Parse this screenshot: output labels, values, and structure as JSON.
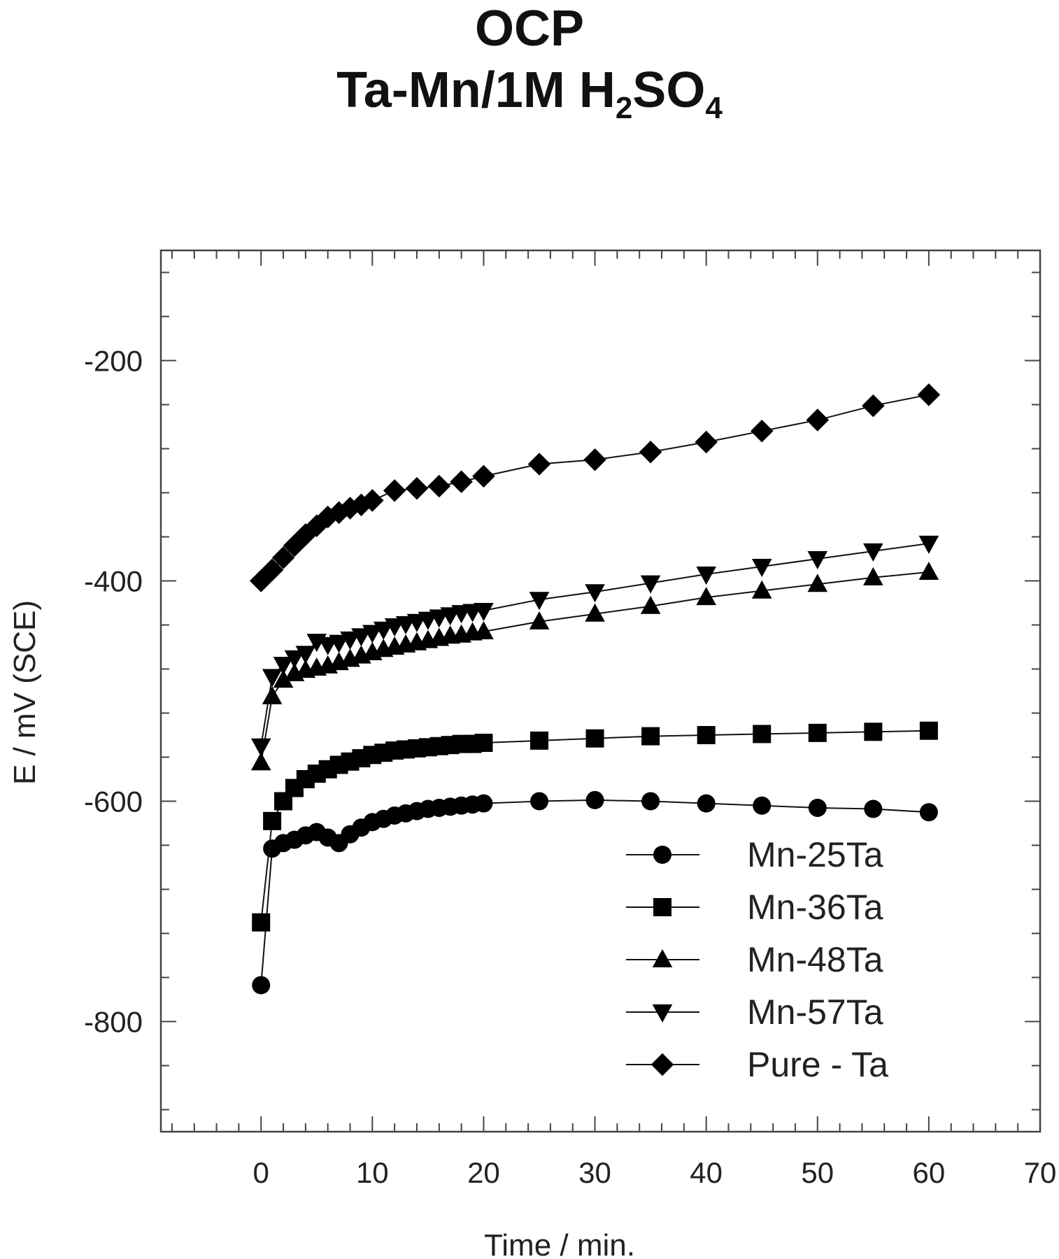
{
  "chart_data": {
    "type": "line",
    "title_line1": "OCP",
    "title_line2_main": "Ta-Mn/1M H",
    "title_line2_sub1": "2",
    "title_line2_mid": "SO",
    "title_line2_sub2": "4",
    "xlabel": "Time / min.",
    "ylabel": "E / mV (SCE)",
    "xlim": [
      -9,
      70
    ],
    "ylim": [
      -900,
      -100
    ],
    "x_ticks": [
      0,
      10,
      20,
      30,
      40,
      50,
      60,
      70
    ],
    "y_ticks": [
      -200,
      -400,
      -600,
      -800
    ],
    "legend_position": "bottom-right",
    "grid": false,
    "series": [
      {
        "name": "Mn-25Ta",
        "marker": "circle",
        "points": [
          [
            0,
            -767
          ],
          [
            1,
            -643
          ],
          [
            2,
            -638
          ],
          [
            3,
            -635
          ],
          [
            4,
            -631
          ],
          [
            5,
            -628
          ],
          [
            6,
            -633
          ],
          [
            7,
            -638
          ],
          [
            8,
            -630
          ],
          [
            9,
            -624
          ],
          [
            10,
            -619
          ],
          [
            11,
            -616
          ],
          [
            12,
            -613
          ],
          [
            13,
            -611
          ],
          [
            14,
            -609
          ],
          [
            15,
            -607
          ],
          [
            16,
            -606
          ],
          [
            17,
            -605
          ],
          [
            18,
            -604
          ],
          [
            19,
            -603
          ],
          [
            20,
            -602
          ],
          [
            25,
            -600
          ],
          [
            30,
            -599
          ],
          [
            35,
            -600
          ],
          [
            40,
            -602
          ],
          [
            45,
            -604
          ],
          [
            50,
            -606
          ],
          [
            55,
            -607
          ],
          [
            60,
            -610
          ]
        ]
      },
      {
        "name": "Mn-36Ta",
        "marker": "square",
        "points": [
          [
            0,
            -710
          ],
          [
            1,
            -618
          ],
          [
            2,
            -600
          ],
          [
            3,
            -588
          ],
          [
            4,
            -580
          ],
          [
            5,
            -575
          ],
          [
            6,
            -571
          ],
          [
            7,
            -567
          ],
          [
            8,
            -564
          ],
          [
            9,
            -561
          ],
          [
            10,
            -558
          ],
          [
            11,
            -556
          ],
          [
            12,
            -554
          ],
          [
            13,
            -553
          ],
          [
            14,
            -552
          ],
          [
            15,
            -551
          ],
          [
            16,
            -550
          ],
          [
            17,
            -549
          ],
          [
            18,
            -548
          ],
          [
            19,
            -548
          ],
          [
            20,
            -547
          ],
          [
            25,
            -545
          ],
          [
            30,
            -543
          ],
          [
            35,
            -541
          ],
          [
            40,
            -540
          ],
          [
            45,
            -539
          ],
          [
            50,
            -538
          ],
          [
            55,
            -537
          ],
          [
            60,
            -536
          ]
        ]
      },
      {
        "name": "Mn-48Ta",
        "marker": "triangle-up",
        "points": [
          [
            0,
            -565
          ],
          [
            1,
            -505
          ],
          [
            2,
            -490
          ],
          [
            3,
            -484
          ],
          [
            4,
            -481
          ],
          [
            5,
            -479
          ],
          [
            6,
            -477
          ],
          [
            7,
            -474
          ],
          [
            8,
            -471
          ],
          [
            9,
            -468
          ],
          [
            10,
            -465
          ],
          [
            11,
            -462
          ],
          [
            12,
            -460
          ],
          [
            13,
            -458
          ],
          [
            14,
            -456
          ],
          [
            15,
            -454
          ],
          [
            16,
            -452
          ],
          [
            17,
            -450
          ],
          [
            18,
            -449
          ],
          [
            19,
            -447
          ],
          [
            20,
            -446
          ],
          [
            25,
            -437
          ],
          [
            30,
            -430
          ],
          [
            35,
            -423
          ],
          [
            40,
            -415
          ],
          [
            45,
            -409
          ],
          [
            50,
            -403
          ],
          [
            55,
            -397
          ],
          [
            60,
            -392
          ]
        ]
      },
      {
        "name": "Mn-57Ta",
        "marker": "triangle-down",
        "points": [
          [
            0,
            -550
          ],
          [
            1,
            -487
          ],
          [
            2,
            -476
          ],
          [
            3,
            -470
          ],
          [
            4,
            -466
          ],
          [
            5,
            -455
          ],
          [
            6,
            -458
          ],
          [
            7,
            -456
          ],
          [
            8,
            -453
          ],
          [
            9,
            -450
          ],
          [
            10,
            -447
          ],
          [
            11,
            -444
          ],
          [
            12,
            -441
          ],
          [
            13,
            -439
          ],
          [
            14,
            -437
          ],
          [
            15,
            -435
          ],
          [
            16,
            -433
          ],
          [
            17,
            -431
          ],
          [
            18,
            -429
          ],
          [
            19,
            -428
          ],
          [
            20,
            -427
          ],
          [
            25,
            -417
          ],
          [
            30,
            -410
          ],
          [
            35,
            -402
          ],
          [
            40,
            -394
          ],
          [
            45,
            -387
          ],
          [
            50,
            -380
          ],
          [
            55,
            -373
          ],
          [
            60,
            -366
          ]
        ]
      },
      {
        "name": "Pure - Ta",
        "marker": "diamond",
        "points": [
          [
            0,
            -400
          ],
          [
            1,
            -390
          ],
          [
            2,
            -379
          ],
          [
            3,
            -368
          ],
          [
            4,
            -358
          ],
          [
            5,
            -350
          ],
          [
            6,
            -342
          ],
          [
            7,
            -338
          ],
          [
            8,
            -334
          ],
          [
            9,
            -331
          ],
          [
            10,
            -327
          ],
          [
            12,
            -318
          ],
          [
            14,
            -316
          ],
          [
            16,
            -314
          ],
          [
            18,
            -310
          ],
          [
            20,
            -305
          ],
          [
            25,
            -294
          ],
          [
            30,
            -290
          ],
          [
            35,
            -283
          ],
          [
            40,
            -274
          ],
          [
            45,
            -264
          ],
          [
            50,
            -254
          ],
          [
            55,
            -241
          ],
          [
            60,
            -231
          ]
        ]
      }
    ]
  }
}
